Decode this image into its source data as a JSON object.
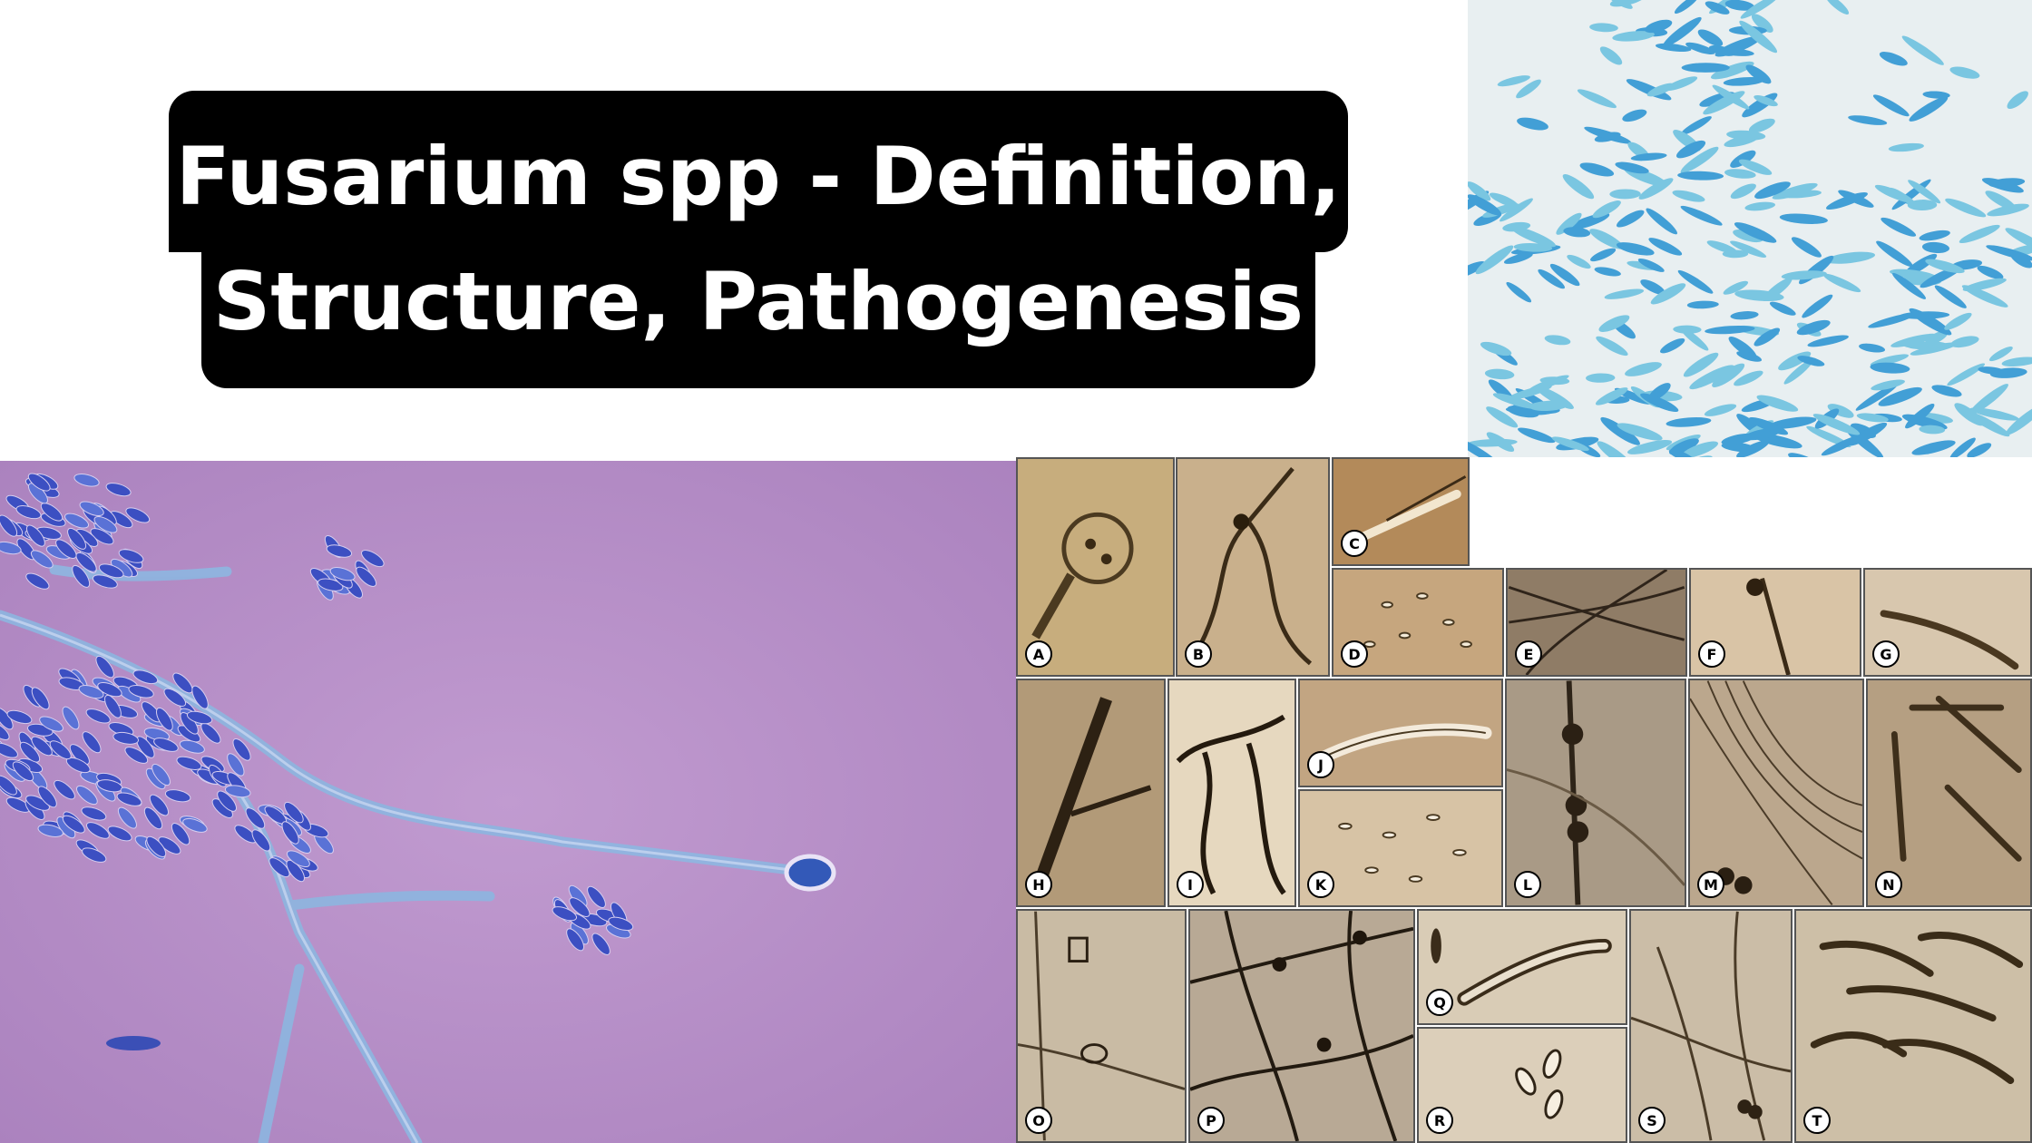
{
  "title": {
    "line1": "Fusarium spp - Definition,",
    "line2": "Structure, Pathogenesis"
  },
  "panels": [
    "A",
    "B",
    "C",
    "D",
    "E",
    "F",
    "G",
    "H",
    "I",
    "J",
    "K",
    "L",
    "M",
    "N",
    "O",
    "P",
    "Q",
    "R",
    "S",
    "T"
  ],
  "colors": {
    "title_bg": "#000000",
    "title_text": "#ffffff",
    "stain_purple": "#b68ac4",
    "stain_blue": "#3a9ed4",
    "sepia": "#c9b08a"
  }
}
